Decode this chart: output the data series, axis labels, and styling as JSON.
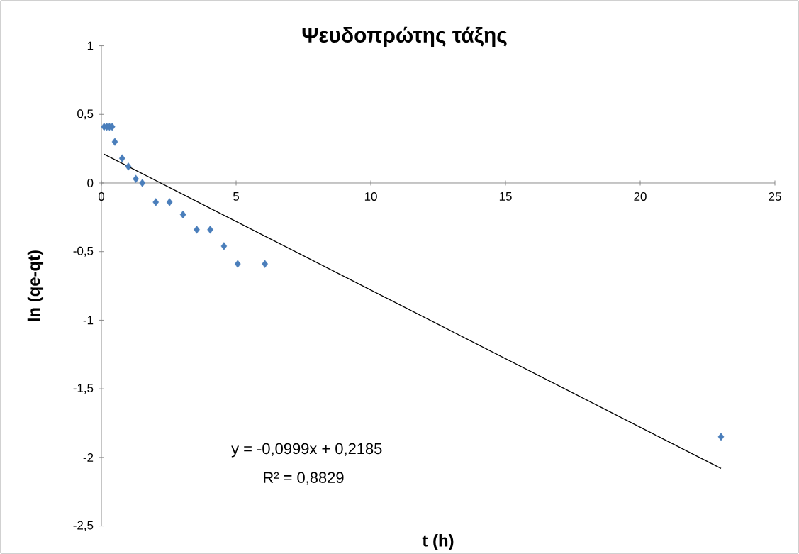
{
  "chart_data": {
    "type": "scatter",
    "title": "Ψευδοπρώτης τάξης",
    "xlabel": "t (h)",
    "ylabel": "ln (qe-qt)",
    "series": [
      {
        "marker": "diamond",
        "color": "#4a7ebb",
        "x": [
          0.1,
          0.2,
          0.3,
          0.4,
          0.5,
          0.77,
          1.0,
          1.28,
          1.52,
          2.02,
          2.53,
          3.03,
          3.54,
          4.04,
          4.55,
          5.06,
          6.07,
          23
        ],
        "values": [
          0.41,
          0.41,
          0.41,
          0.41,
          0.3,
          0.18,
          0.12,
          0.03,
          0.0,
          -0.14,
          -0.14,
          -0.23,
          -0.34,
          -0.34,
          -0.46,
          -0.59,
          -0.59,
          -1.85
        ]
      },
      {
        "type": "line",
        "color": "#000000",
        "x": [
          0.1,
          23
        ],
        "values": [
          0.21,
          -2.08
        ]
      }
    ],
    "xlim": [
      0,
      25
    ],
    "ylim": [
      -2.5,
      1
    ],
    "xticks": [
      0,
      5,
      10,
      15,
      20,
      25
    ],
    "yticks": [
      {
        "value": -2.5,
        "label": "-2,5"
      },
      -2,
      {
        "value": -1.5,
        "label": "-1,5"
      },
      -1,
      {
        "value": -0.5,
        "label": "-0,5"
      },
      0,
      {
        "value": 0.5,
        "label": "0,5"
      },
      1
    ],
    "annotations": [
      "y = -0,0999x + 0,2185",
      "R² = 0,8829"
    ]
  }
}
